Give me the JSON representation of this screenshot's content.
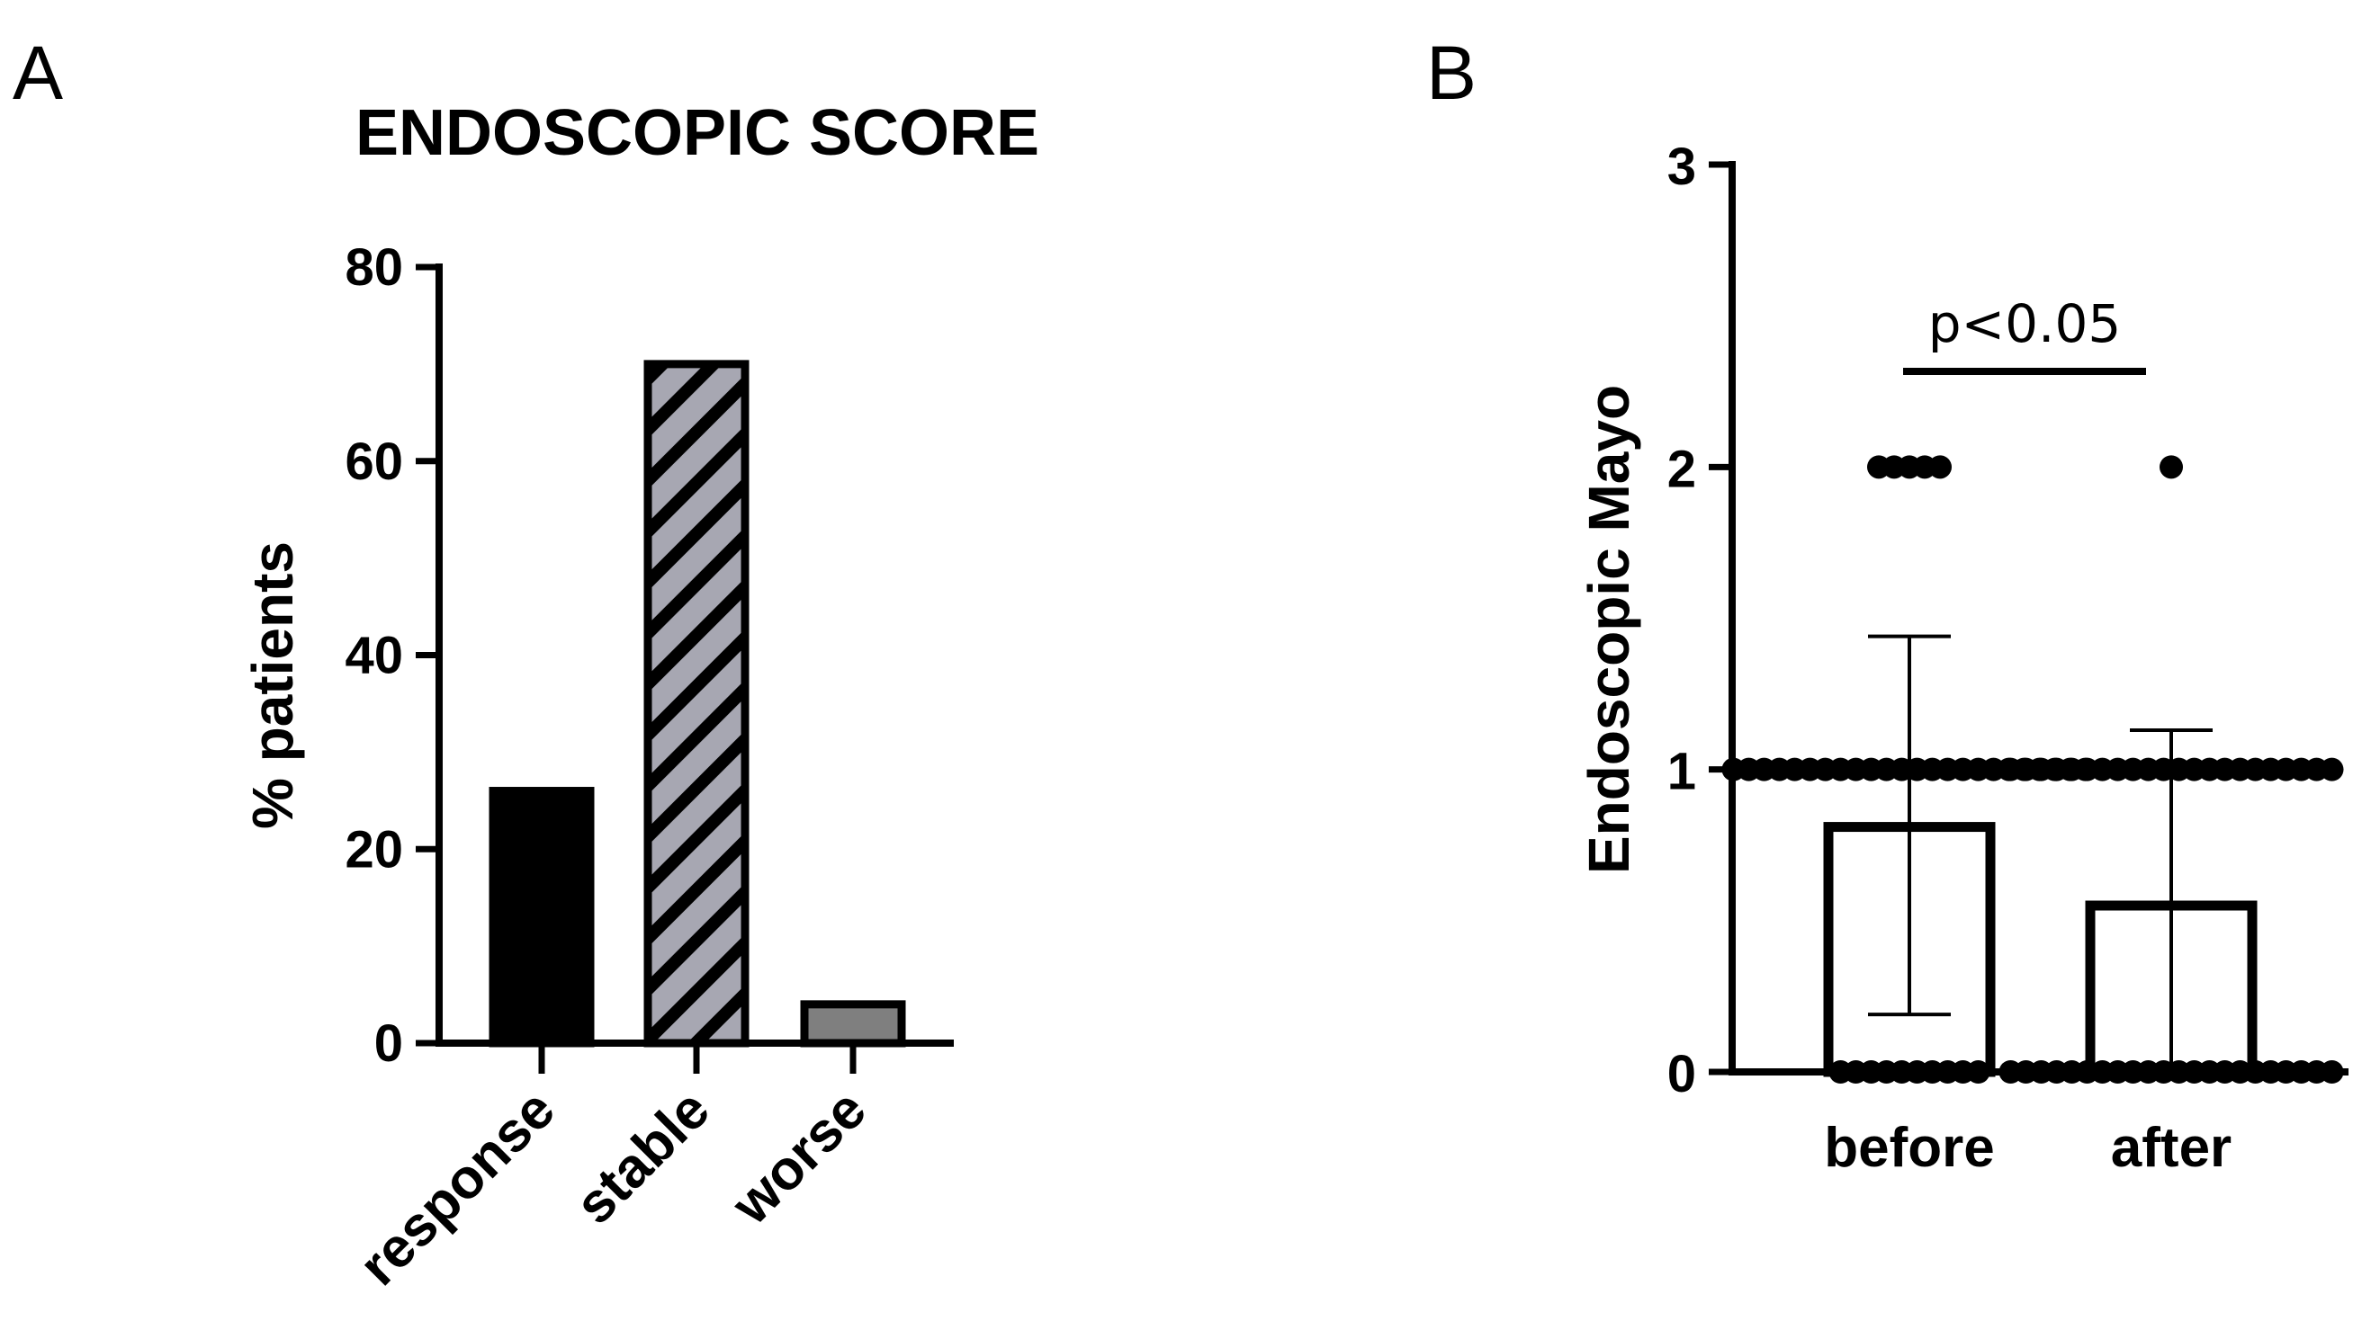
{
  "colors": {
    "axis": "#000000",
    "response_fill": "#000000",
    "stable_fill": "#a7a7b2",
    "worse_fill": "#7f7f7f",
    "bar_outline": "#000000",
    "open_bar_fill": "#ffffff"
  },
  "chart_data": [
    {
      "panel": "A",
      "type": "bar",
      "title": "ENDOSCOPIC SCORE",
      "xlabel": "",
      "ylabel": "% patients",
      "ylim": [
        0,
        80
      ],
      "yticks": [
        "0",
        "20",
        "40",
        "60",
        "80"
      ],
      "categories": [
        "response",
        "stable",
        "worse"
      ],
      "values": [
        26,
        70,
        4
      ],
      "fills": [
        "solid-black",
        "hatched-grey",
        "solid-grey"
      ],
      "grid": false,
      "legend": "none"
    },
    {
      "panel": "B",
      "type": "bar",
      "title": "",
      "xlabel": "",
      "ylabel": "Endoscopic Mayo",
      "ylim": [
        0,
        3
      ],
      "yticks": [
        "0",
        "1",
        "2",
        "3"
      ],
      "categories": [
        "before",
        "after"
      ],
      "means": [
        0.81,
        0.55
      ],
      "error_low": [
        0.19,
        0.0
      ],
      "error_high": [
        1.44,
        1.13
      ],
      "points": {
        "before": {
          "0": 10,
          "1": 24,
          "2": 5
        },
        "after": {
          "0": 22,
          "1": 22,
          "2": 1
        }
      },
      "annotation": "p<0.05",
      "grid": false,
      "legend": "none"
    }
  ]
}
